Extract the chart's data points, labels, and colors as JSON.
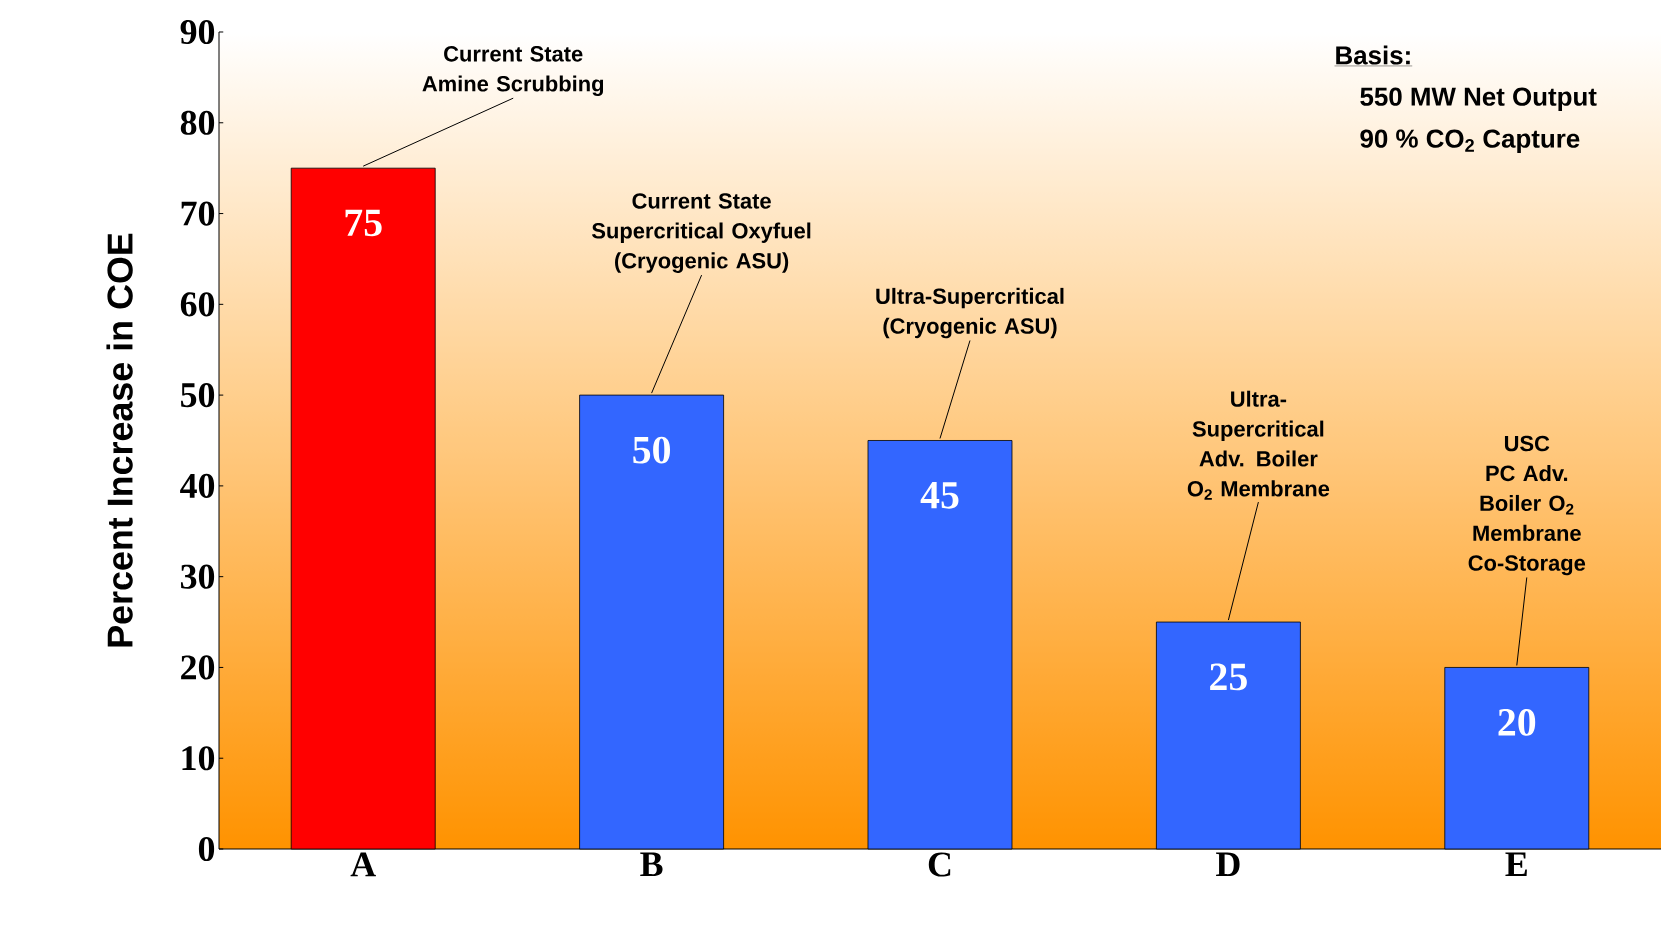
{
  "chart_data": {
    "type": "bar",
    "ylabel": "Percent Increase in COE",
    "categories": [
      "A",
      "B",
      "C",
      "D",
      "E"
    ],
    "values": [
      75,
      50,
      45,
      25,
      20
    ],
    "colors": [
      "#ff0000",
      "#3366ff",
      "#3366ff",
      "#3366ff",
      "#3366ff"
    ],
    "ylim": [
      0,
      90
    ],
    "yticks": [
      0,
      10,
      20,
      30,
      40,
      50,
      60,
      70,
      80,
      90
    ],
    "data_labels": true,
    "grid": false,
    "annotations": [
      {
        "text": "Current State Amine Scrubbing",
        "x": "A",
        "y": 75
      },
      {
        "text": "Current State Supercritical Oxyfuel (Cryogenic ASU)",
        "x": "B",
        "y": 50
      },
      {
        "text": "Ultra-Supercritical (Cryogenic ASU)",
        "x": "C",
        "y": 45
      },
      {
        "text": "Ultra-Supercritical Adv. Boiler O$_{2}$ Membrane",
        "x": "D",
        "y": 25
      },
      {
        "text": "USC PC Adv. Boiler O$_{2}$ Membrane Co-Storage",
        "x": "E",
        "y": 20
      },
      "Basis:",
      "550 MW Net Output",
      "90 % CO$_{2}$ Capture"
    ]
  }
}
